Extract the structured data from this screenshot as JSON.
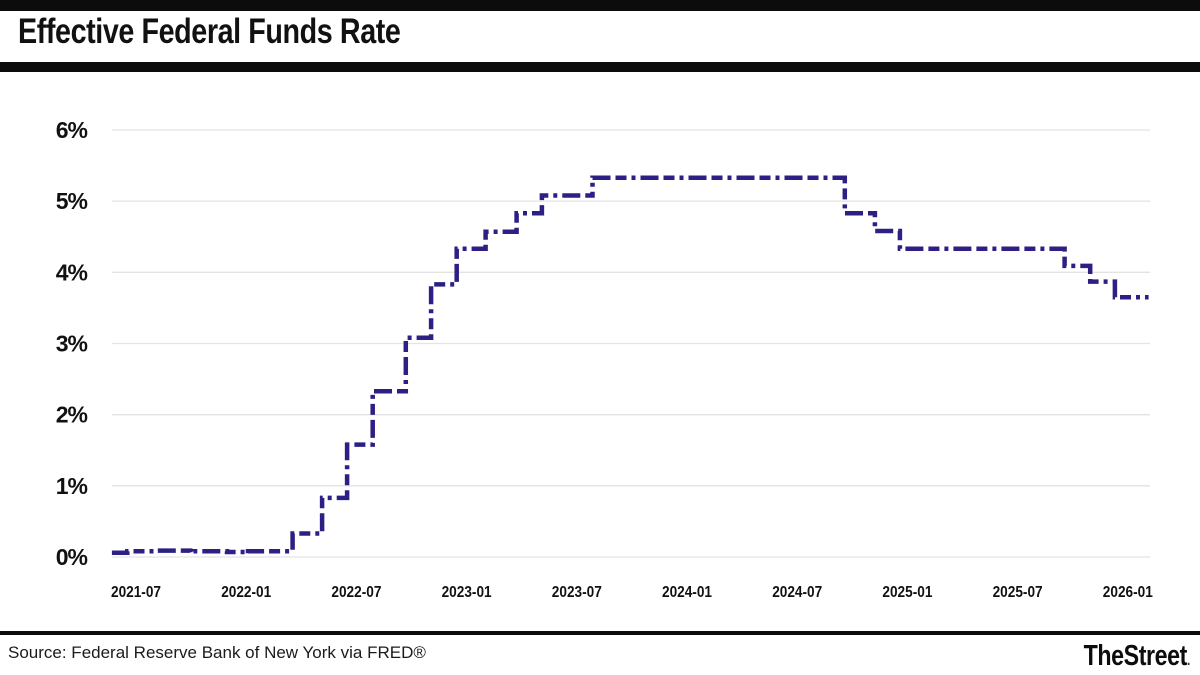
{
  "header": {
    "title": "Effective Federal Funds Rate"
  },
  "footer": {
    "source": "Source: Federal Reserve Bank of New York via FRED®",
    "brand": "TheStreet",
    "brand_dot": "."
  },
  "chart_data": {
    "type": "line",
    "subtype": "step-after",
    "title": "Effective Federal Funds Rate",
    "xlabel": "",
    "ylabel": "",
    "unit": "percent",
    "grid": true,
    "legend": "none",
    "line_color": "#2c2084",
    "grid_color": "#e3e3e3",
    "axis_label_color": "#111111",
    "line_style": "dashed",
    "ylim": [
      0,
      6
    ],
    "x_range": [
      "2021-05-22",
      "2026-02-05"
    ],
    "y_ticks": [
      {
        "label": "6%",
        "value": 6
      },
      {
        "label": "5%",
        "value": 5
      },
      {
        "label": "4%",
        "value": 4
      },
      {
        "label": "3%",
        "value": 3
      },
      {
        "label": "2%",
        "value": 2
      },
      {
        "label": "1%",
        "value": 1
      },
      {
        "label": "0%",
        "value": 0
      }
    ],
    "x_ticks": [
      {
        "label": "2021-07",
        "date": "2021-07-01"
      },
      {
        "label": "2022-01",
        "date": "2022-01-01"
      },
      {
        "label": "2022-07",
        "date": "2022-07-01"
      },
      {
        "label": "2023-01",
        "date": "2023-01-01"
      },
      {
        "label": "2023-07",
        "date": "2023-07-01"
      },
      {
        "label": "2024-01",
        "date": "2024-01-01"
      },
      {
        "label": "2024-07",
        "date": "2024-07-01"
      },
      {
        "label": "2025-01",
        "date": "2025-01-01"
      },
      {
        "label": "2025-07",
        "date": "2025-07-01"
      },
      {
        "label": "2026-01",
        "date": "2026-01-01"
      }
    ],
    "series": [
      {
        "name": "Effective Federal Funds Rate",
        "points": [
          {
            "date": "2021-05-22",
            "value": 0.06
          },
          {
            "date": "2021-06-17",
            "value": 0.08
          },
          {
            "date": "2021-08-01",
            "value": 0.09
          },
          {
            "date": "2021-09-30",
            "value": 0.06
          },
          {
            "date": "2021-10-05",
            "value": 0.08
          },
          {
            "date": "2021-11-30",
            "value": 0.07
          },
          {
            "date": "2021-12-31",
            "value": 0.05
          },
          {
            "date": "2022-01-04",
            "value": 0.08
          },
          {
            "date": "2022-03-17",
            "value": 0.33
          },
          {
            "date": "2022-05-05",
            "value": 0.83
          },
          {
            "date": "2022-06-16",
            "value": 1.58
          },
          {
            "date": "2022-07-28",
            "value": 2.33
          },
          {
            "date": "2022-09-22",
            "value": 3.08
          },
          {
            "date": "2022-11-03",
            "value": 3.83
          },
          {
            "date": "2022-12-15",
            "value": 4.33
          },
          {
            "date": "2023-02-02",
            "value": 4.57
          },
          {
            "date": "2023-03-23",
            "value": 4.83
          },
          {
            "date": "2023-05-04",
            "value": 5.08
          },
          {
            "date": "2023-07-27",
            "value": 5.33
          },
          {
            "date": "2024-09-19",
            "value": 4.83
          },
          {
            "date": "2024-11-08",
            "value": 4.58
          },
          {
            "date": "2024-12-19",
            "value": 4.33
          },
          {
            "date": "2025-09-18",
            "value": 4.09
          },
          {
            "date": "2025-10-30",
            "value": 3.87
          },
          {
            "date": "2025-12-10",
            "value": 3.65
          },
          {
            "date": "2026-02-05",
            "value": 3.65
          }
        ]
      }
    ]
  }
}
